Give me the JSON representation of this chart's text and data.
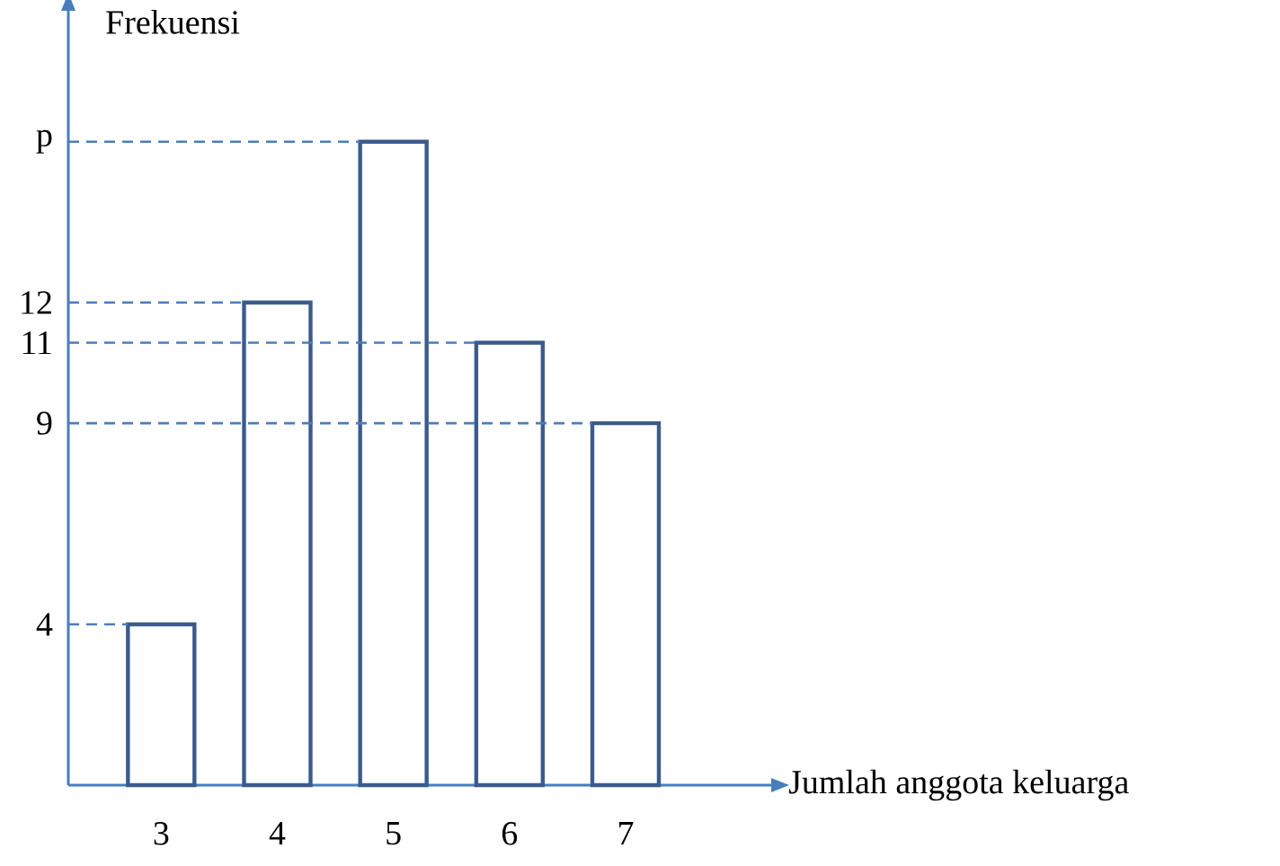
{
  "chart_data": {
    "type": "bar",
    "xlabel": "Jumlah anggota keluarga",
    "ylabel": "Frekuensi",
    "categories": [
      "3",
      "4",
      "5",
      "6",
      "7"
    ],
    "values": [
      4,
      12,
      16,
      11,
      9
    ],
    "color": "#3b5b8c",
    "ylim": [
      0,
      19.3
    ],
    "yticks": [
      4,
      9,
      11,
      12,
      {
        "value": 16,
        "label": "p"
      }
    ],
    "ref_lines": [
      {
        "axis": "y",
        "value": 4,
        "color": "#4a7ebb",
        "line_style": "dashed"
      },
      {
        "axis": "y",
        "value": 12,
        "color": "#4a7ebb",
        "line_style": "dashed"
      },
      {
        "axis": "y",
        "value": 16,
        "color": "#4a7ebb",
        "line_style": "dashed"
      },
      {
        "axis": "y",
        "value": 11,
        "color": "#4a7ebb",
        "line_style": "dashed"
      },
      {
        "axis": "y",
        "value": 9,
        "color": "#4a7ebb",
        "line_style": "dashed"
      }
    ],
    "grid": false
  }
}
